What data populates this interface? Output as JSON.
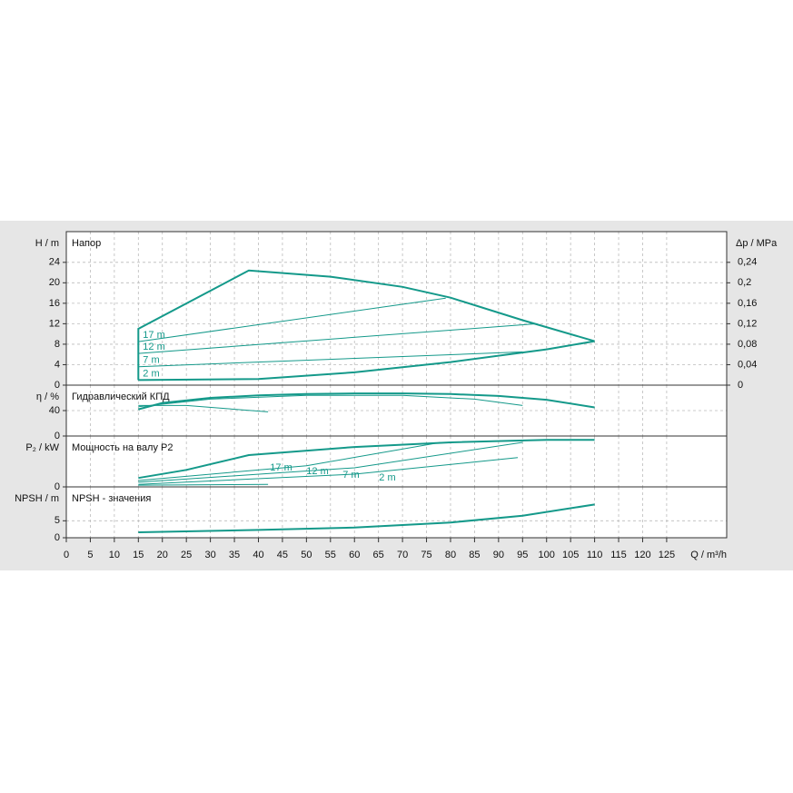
{
  "chart_data": [
    {
      "type": "line",
      "title": "Напор",
      "ylabel": "H / m",
      "y2label": "Δp / MPa",
      "xlim": [
        0,
        137.5
      ],
      "ylim": [
        0,
        30
      ],
      "yticks": [
        0,
        4,
        8,
        12,
        16,
        20,
        24
      ],
      "y2lim": [
        0,
        0.3
      ],
      "y2ticks": [
        0,
        {
          "value": 0.04,
          "label": "0,04"
        },
        {
          "value": 0.08,
          "label": "0,08"
        },
        {
          "value": 0.12,
          "label": "0,12"
        },
        {
          "value": 0.16,
          "label": "0,16"
        },
        {
          "value": 0.2,
          "label": "0,2"
        },
        {
          "value": 0.24,
          "label": "0,24"
        }
      ],
      "grid": true,
      "series": [
        {
          "color": "#14998a",
          "line_width": 2,
          "x": [
            15,
            15,
            38,
            55,
            70,
            80,
            95,
            110
          ],
          "values": [
            1,
            11,
            22.4,
            21.2,
            19.2,
            17.1,
            12.7,
            8.6
          ]
        },
        {
          "color": "#14998a",
          "line_width": 2,
          "x": [
            15,
            40,
            60,
            80,
            100,
            110
          ],
          "values": [
            1,
            1.2,
            2.5,
            4.5,
            7,
            8.6
          ]
        },
        {
          "name": "17 m",
          "color": "#14998a",
          "line_width": 1,
          "x": [
            15,
            79
          ],
          "values": [
            8.5,
            17
          ]
        },
        {
          "name": "12 m",
          "color": "#14998a",
          "line_width": 1,
          "x": [
            15,
            98
          ],
          "values": [
            6.2,
            12
          ]
        },
        {
          "name": "7 m",
          "color": "#14998a",
          "line_width": 1,
          "x": [
            15,
            95
          ],
          "values": [
            3.6,
            6.5
          ]
        },
        {
          "name": "2 m",
          "color": "#14998a",
          "line_width": 1,
          "x": [
            15,
            40
          ],
          "values": [
            1,
            1.2
          ]
        }
      ]
    },
    {
      "type": "line",
      "title": "Гидравлический КПД",
      "ylabel": "η / %",
      "xlim": [
        0,
        137.5
      ],
      "ylim": [
        0,
        80
      ],
      "yticks": [
        0,
        40
      ],
      "grid": true,
      "series": [
        {
          "color": "#14998a",
          "line_width": 2,
          "x": [
            15,
            20,
            30,
            40,
            50,
            60,
            70,
            80,
            90,
            100,
            110
          ],
          "values": [
            42,
            52,
            60,
            64,
            66,
            67,
            67,
            66,
            63,
            57,
            45
          ]
        },
        {
          "color": "#14998a",
          "line_width": 1,
          "x": [
            15,
            30,
            50,
            70,
            85,
            95
          ],
          "values": [
            46,
            58,
            64,
            64,
            58,
            48
          ]
        },
        {
          "color": "#14998a",
          "line_width": 1,
          "x": [
            15,
            25,
            42
          ],
          "values": [
            48,
            48,
            38
          ]
        }
      ]
    },
    {
      "type": "line",
      "title": "Мощность на валу P2",
      "ylabel": "P₂ / kW",
      "xlim": [
        0,
        137.5
      ],
      "ylim": [
        0,
        12
      ],
      "yticks": [
        0
      ],
      "grid": true,
      "series": [
        {
          "color": "#14998a",
          "line_width": 2,
          "x": [
            15,
            25,
            38,
            60,
            80,
            100,
            110
          ],
          "values": [
            2.1,
            4,
            7.5,
            9.4,
            10.5,
            11.1,
            11.1
          ]
        },
        {
          "name": "17 m",
          "color": "#14998a",
          "line_width": 1,
          "x": [
            15,
            50,
            78
          ],
          "values": [
            1.5,
            5,
            10.5
          ]
        },
        {
          "name": "12 m",
          "color": "#14998a",
          "line_width": 1,
          "x": [
            15,
            60,
            95
          ],
          "values": [
            1.1,
            4.5,
            10.5
          ]
        },
        {
          "name": "7 m",
          "color": "#14998a",
          "line_width": 1,
          "x": [
            15,
            60,
            94
          ],
          "values": [
            0.6,
            3,
            6.9
          ]
        },
        {
          "name": "2 m",
          "color": "#14998a",
          "line_width": 1,
          "x": [
            15,
            42
          ],
          "values": [
            0.4,
            0.6
          ]
        }
      ]
    },
    {
      "type": "line",
      "title": "NPSH - значения",
      "ylabel": "NPSH / m",
      "xlabel": "Q / m³/h",
      "xlim": [
        0,
        137.5
      ],
      "ylim": [
        0,
        15
      ],
      "yticks": [
        0,
        5
      ],
      "grid": true,
      "xticks": [
        0,
        5,
        10,
        15,
        20,
        25,
        30,
        35,
        40,
        45,
        50,
        55,
        60,
        65,
        70,
        75,
        80,
        85,
        90,
        95,
        100,
        105,
        110,
        115,
        120,
        125
      ],
      "series": [
        {
          "color": "#14998a",
          "line_width": 2,
          "x": [
            15,
            40,
            60,
            80,
            95,
            110
          ],
          "values": [
            1.6,
            2.3,
            3,
            4.5,
            6.5,
            9.8
          ]
        }
      ]
    }
  ]
}
